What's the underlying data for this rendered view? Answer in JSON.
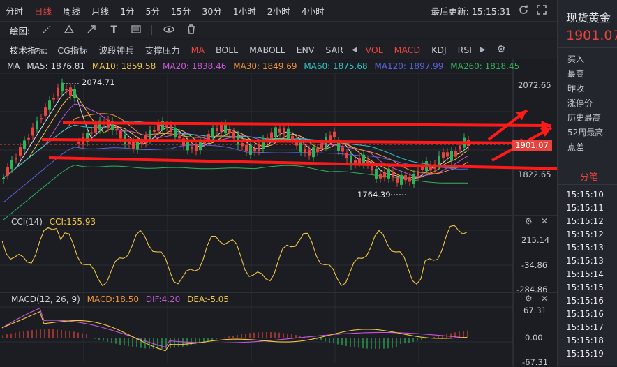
{
  "toolbar": {
    "tabs": [
      "分时",
      "日线",
      "周线",
      "月线",
      "1分",
      "5分",
      "15分",
      "30分",
      "1小时",
      "2小时",
      "4小时"
    ],
    "active_tab": "日线",
    "last_update_label": "最后更新: 15:15:31",
    "icons": [
      "refresh-icon",
      "fullscreen-icon"
    ]
  },
  "drawbar": {
    "label": "绘图:",
    "tools": [
      "line-tool-icon",
      "triangle-tool-icon",
      "arrow-tool-icon",
      "text-tool-icon",
      "pattern-tool-icon",
      "eye-icon",
      "trash-icon"
    ]
  },
  "indicators": {
    "label": "技术指标:",
    "main": [
      "CG指标",
      "波段神兵",
      "支撑压力",
      "MA",
      "BOLL",
      "MABOLL",
      "ENV",
      "SAR"
    ],
    "active_main": "MA",
    "sub": [
      "VOL",
      "MACD",
      "KDJ",
      "RSI"
    ],
    "active_sub": [
      "VOL",
      "MACD"
    ]
  },
  "ma_legend": {
    "title": "MA",
    "items": [
      {
        "label": "MA5: 1876.81",
        "color": "#d8dade"
      },
      {
        "label": "MA10: 1859.58",
        "color": "#f2c744"
      },
      {
        "label": "MA20: 1838.46",
        "color": "#c557d8"
      },
      {
        "label": "MA30: 1849.69",
        "color": "#f29137"
      },
      {
        "label": "MA60: 1875.68",
        "color": "#2fc6c8"
      },
      {
        "label": "MA120: 1897.99",
        "color": "#5a63e0"
      },
      {
        "label": "MA260: 1818.45",
        "color": "#2fb35a"
      }
    ]
  },
  "main_chart": {
    "y_labels": [
      "2072.65",
      "1901.07",
      "1822.65"
    ],
    "high_label": "2074.71",
    "low_label": "1764.39",
    "current_price": "1901.07",
    "colors": {
      "up": "#e8433c",
      "down": "#2fb35a",
      "arrow": "#ff1a1a"
    }
  },
  "cci": {
    "title": "CCI(14)",
    "value_label": "CCI:155.93",
    "y_labels": [
      "215.14",
      "-34.86",
      "-284.86"
    ],
    "color": "#f2c744"
  },
  "macd": {
    "title": "MACD(12, 26, 9)",
    "macd_label": "MACD:18.50",
    "dif_label": "DIF:4.20",
    "dea_label": "DEA:-5.05",
    "y_labels": [
      "67.31",
      "0.00",
      "-67.31"
    ]
  },
  "side": {
    "name": "现货黄金",
    "price": "1901.07",
    "quote_labels": [
      "买入",
      "最高",
      "昨收",
      "涨停价",
      "历史最高",
      "52周最高",
      "点差"
    ],
    "ticks_title": "分笔",
    "times": [
      "15:15:10",
      "15:15:11",
      "15:15:12",
      "15:15:12",
      "15:15:13",
      "15:15:13",
      "15:15:14",
      "15:15:15",
      "15:15:16",
      "15:15:16",
      "15:15:17",
      "15:15:18",
      "15:15:19"
    ]
  }
}
